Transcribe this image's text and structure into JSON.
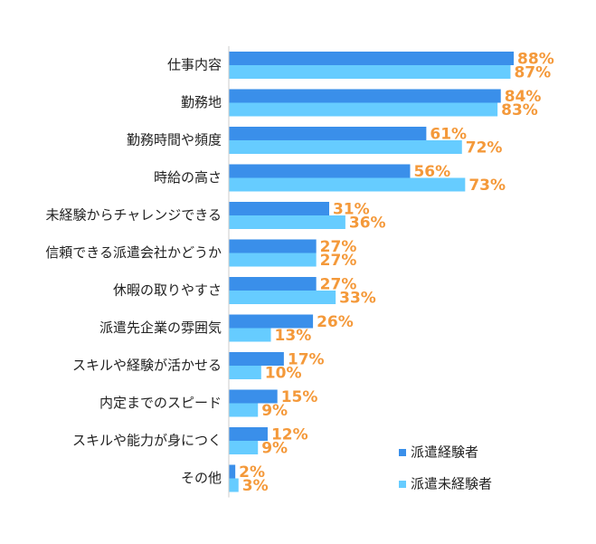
{
  "chart_data": {
    "type": "hbar",
    "categories": [
      "仕事内容",
      "勤務地",
      "勤務時間や頻度",
      "時給の高さ",
      "未経験からチャレンジできる",
      "信頼できる派遣会社かどうか",
      "休暇の取りやすさ",
      "派遣先企業の雰囲気",
      "スキルや経験が活かせる",
      "内定までのスピード",
      "スキルや能力が身につく",
      "その他"
    ],
    "series": [
      {
        "name": "派遣経験者",
        "color": "#3a8fea",
        "values": [
          88,
          84,
          61,
          56,
          31,
          27,
          27,
          26,
          17,
          15,
          12,
          2
        ],
        "value_labels": [
          "88%",
          "84%",
          "61%",
          "56%",
          "31%",
          "27%",
          "27%",
          "26%",
          "17%",
          "15%",
          "12%",
          "2%"
        ]
      },
      {
        "name": "派遣未経験者",
        "color": "#66ccff",
        "values": [
          87,
          83,
          72,
          73,
          36,
          27,
          33,
          13,
          10,
          9,
          9,
          3
        ],
        "value_labels": [
          "87%",
          "83%",
          "72%",
          "73%",
          "36%",
          "27%",
          "33%",
          "13%",
          "10%",
          "9%",
          "9%",
          "3%"
        ]
      }
    ],
    "label_color": "#f4993a",
    "legend": "lower-right"
  }
}
